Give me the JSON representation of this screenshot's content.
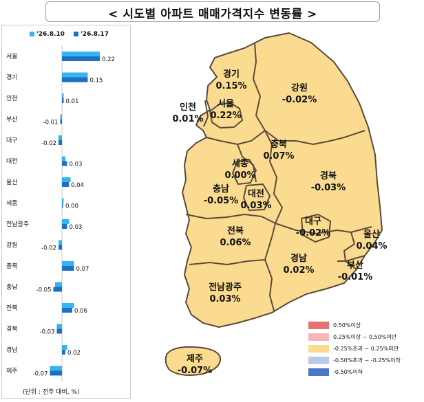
{
  "title": "< 시도별 아파트 매매가격지수 변동률 >",
  "chart": {
    "legend": [
      {
        "label": "'26.8.10",
        "color": "#33b5ee"
      },
      {
        "label": "'26.8.17",
        "color": "#1f6fc5"
      }
    ],
    "unit_note": "(단위 : 전주 대비, %)"
  },
  "chart_data": {
    "type": "bar",
    "orientation": "horizontal",
    "categories": [
      "서울",
      "경기",
      "인천",
      "부산",
      "대구",
      "대전",
      "울산",
      "세종",
      "전남광주",
      "강원",
      "충북",
      "충남",
      "전북",
      "경북",
      "경남",
      "제주"
    ],
    "series": [
      {
        "name": "'26.8.10",
        "values": [
          0.22,
          0.15,
          0.01,
          -0.01,
          -0.02,
          0.02,
          0.05,
          0.01,
          0.04,
          -0.02,
          0.07,
          -0.04,
          0.07,
          -0.03,
          0.03,
          -0.07
        ]
      },
      {
        "name": "'26.8.17",
        "values": [
          0.22,
          0.15,
          0.01,
          -0.01,
          -0.02,
          0.03,
          0.04,
          0.0,
          0.03,
          -0.02,
          0.07,
          -0.05,
          0.06,
          -0.03,
          0.02,
          -0.07
        ]
      }
    ],
    "data_labels": [
      "0.22",
      "0.15",
      "0.01",
      "-0.01",
      "-0.02",
      "0.03",
      "0.04",
      "0.00",
      "0.03",
      "-0.02",
      "0.07",
      "-0.05",
      "0.06",
      "-0.03",
      "0.02",
      "-0.07"
    ]
  },
  "map": {
    "regions": [
      {
        "name": "경기",
        "value": "0.15%"
      },
      {
        "name": "강원",
        "value": "-0.02%"
      },
      {
        "name": "인천",
        "value": "0.01%"
      },
      {
        "name": "서울",
        "value": "0.22%"
      },
      {
        "name": "충북",
        "value": "0.07%"
      },
      {
        "name": "세종",
        "value": "0.00%"
      },
      {
        "name": "충남",
        "value": "-0.05%"
      },
      {
        "name": "대전",
        "value": "0.03%"
      },
      {
        "name": "경북",
        "value": "-0.03%"
      },
      {
        "name": "대구",
        "value": "-0.02%"
      },
      {
        "name": "전북",
        "value": "0.06%"
      },
      {
        "name": "울산",
        "value": "0.04%"
      },
      {
        "name": "경남",
        "value": "0.02%"
      },
      {
        "name": "부산",
        "value": "-0.01%"
      },
      {
        "name": "전남광주",
        "value": "0.03%"
      },
      {
        "name": "제주",
        "value": "-0.07%"
      }
    ],
    "fill_color": "#fbdb8f",
    "border_color": "#5a4a3a",
    "legend": [
      {
        "label": "0.50%이상",
        "color": "#e57373"
      },
      {
        "label": "0.25%이상 ~ 0.50%미만",
        "color": "#f5b7bb"
      },
      {
        "label": "-0.25%초과 ~ 0.25%미만",
        "color": "#fbdb8f"
      },
      {
        "label": "-0.50%초과 ~ -0.25%이하",
        "color": "#b9c9e8"
      },
      {
        "label": "-0.50%이하",
        "color": "#4a76c8"
      }
    ]
  }
}
